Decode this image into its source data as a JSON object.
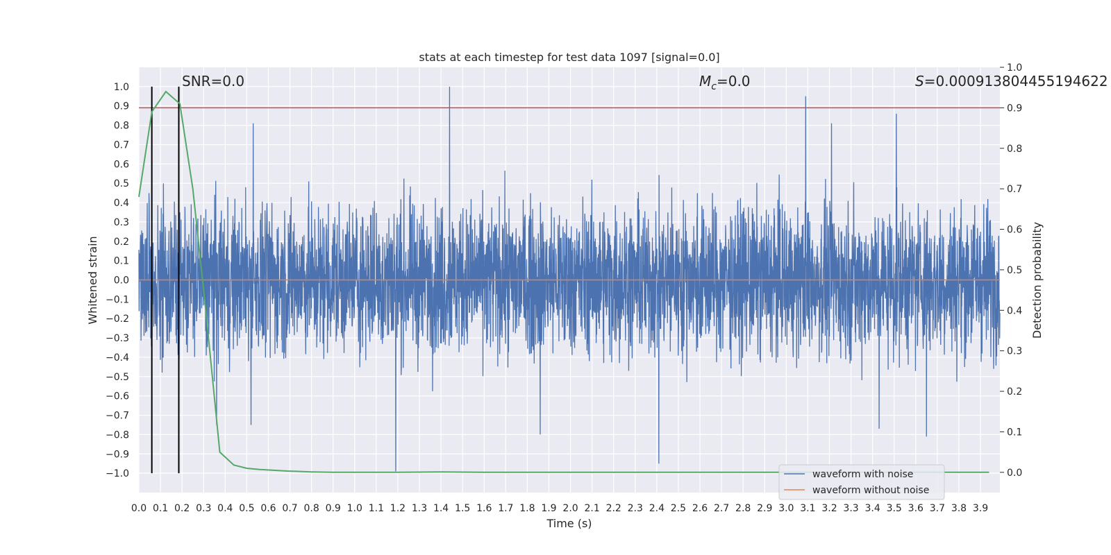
{
  "chart_data": {
    "type": "line",
    "title": "stats at each timestep for test data 1097 [signal=0.0]",
    "xlabel": "Time (s)",
    "ylabel": "Whitened strain",
    "ylabel_right": "Detection probability",
    "xlim": [
      0.0,
      3.99
    ],
    "ylim": [
      -1.1,
      1.1
    ],
    "ylim_right": [
      -0.05,
      1.0
    ],
    "x_ticks": [
      "0.0",
      "0.1",
      "0.2",
      "0.3",
      "0.4",
      "0.5",
      "0.6",
      "0.7",
      "0.8",
      "0.9",
      "1.0",
      "1.1",
      "1.2",
      "1.3",
      "1.4",
      "1.5",
      "1.6",
      "1.7",
      "1.8",
      "1.9",
      "2.0",
      "2.1",
      "2.2",
      "2.3",
      "2.4",
      "2.5",
      "2.6",
      "2.7",
      "2.8",
      "2.9",
      "3.0",
      "3.1",
      "3.2",
      "3.3",
      "3.4",
      "3.5",
      "3.6",
      "3.7",
      "3.8",
      "3.9"
    ],
    "y_ticks": [
      "1.0",
      "0.9",
      "0.8",
      "0.7",
      "0.6",
      "0.5",
      "0.4",
      "0.3",
      "0.2",
      "0.1",
      "0.0",
      "-0.1",
      "-0.2",
      "-0.3",
      "-0.4",
      "-0.5",
      "-0.6",
      "-0.7",
      "-0.8",
      "-0.9",
      "-1.0"
    ],
    "y_ticks_right": [
      "1.0",
      "0.9",
      "0.8",
      "0.7",
      "0.6",
      "0.5",
      "0.4",
      "0.3",
      "0.2",
      "0.1",
      "0.0"
    ],
    "noise_amplitude": 0.35,
    "noise_spikes": [
      {
        "t": 0.53,
        "v": 0.81
      },
      {
        "t": 1.44,
        "v": 1.0
      },
      {
        "t": 3.09,
        "v": 0.95
      },
      {
        "t": 3.51,
        "v": 0.86
      },
      {
        "t": 3.21,
        "v": 0.81
      },
      {
        "t": 1.19,
        "v": -0.99
      },
      {
        "t": 2.41,
        "v": -0.95
      },
      {
        "t": 1.86,
        "v": -0.8
      },
      {
        "t": 3.65,
        "v": -0.81
      },
      {
        "t": 3.43,
        "v": -0.77
      },
      {
        "t": 0.36,
        "v": -0.75
      },
      {
        "t": 0.52,
        "v": -0.75
      }
    ],
    "series": [
      {
        "name": "waveform with noise",
        "color": "#4c72b0",
        "axis": "left"
      },
      {
        "name": "waveform without noise",
        "color": "#dd8452",
        "axis": "left",
        "x": [
          0.0,
          3.99
        ],
        "y": [
          0.0,
          0.0
        ]
      },
      {
        "name": "detection probability",
        "color": "#55a868",
        "axis": "right",
        "x": [
          0.0,
          0.06,
          0.125,
          0.19,
          0.25,
          0.31,
          0.375,
          0.44,
          0.5,
          0.56,
          0.625,
          0.69,
          0.75,
          0.8,
          0.9,
          1.0,
          1.2,
          1.4,
          1.6,
          2.0,
          2.5,
          3.0,
          3.5,
          3.94
        ],
        "y": [
          0.68,
          0.89,
          0.94,
          0.91,
          0.7,
          0.4,
          0.05,
          0.018,
          0.01,
          0.007,
          0.005,
          0.003,
          0.002,
          0.001,
          0.0,
          0.0,
          0.0,
          0.001,
          0.0,
          0.0,
          0.0,
          0.0,
          0.0,
          0.0
        ]
      }
    ],
    "threshold_right": 0.9,
    "threshold_color": "#c44e52",
    "vlines": [
      0.06,
      0.185
    ],
    "vline_range": [
      -1.0,
      1.0
    ],
    "annotations": {
      "snr": "SNR=0.0",
      "mc_symbol": "M",
      "mc_sub": "c",
      "mc_value": "=0.0",
      "s_symbol": "S",
      "s_value": "=0.000913804455194622"
    },
    "legend": [
      "waveform with noise",
      "waveform without noise"
    ],
    "legend_loc": "lower-right",
    "grid": true,
    "background": "#eaeaf2"
  }
}
